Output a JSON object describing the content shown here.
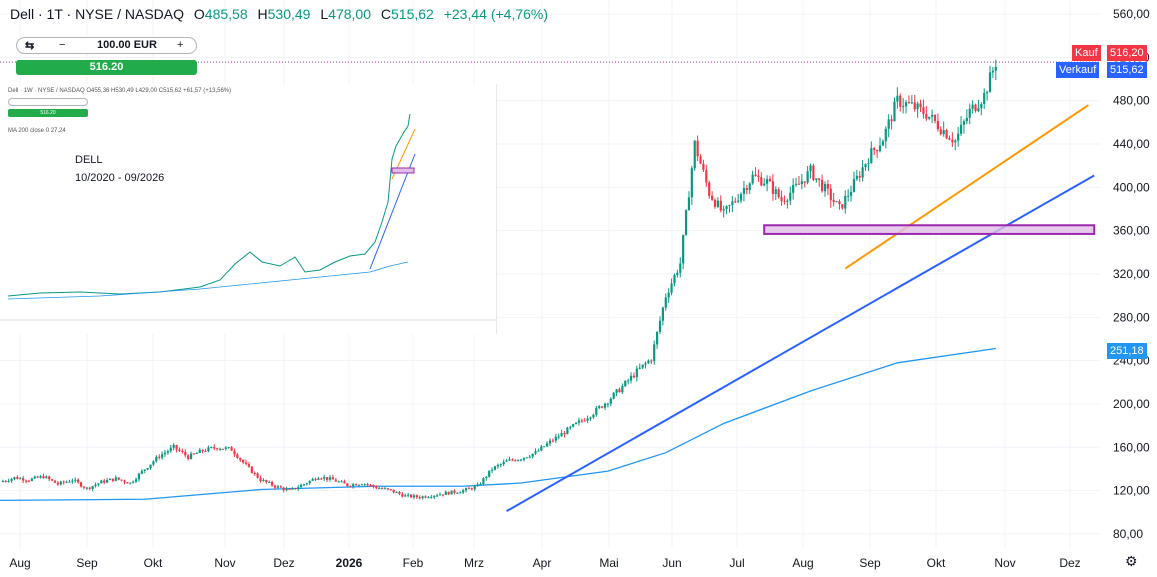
{
  "header": {
    "symbol": "Dell · 1T · NYSE / NASDAQ",
    "open_label": "O",
    "open": "485,58",
    "high_label": "H",
    "high": "530,49",
    "low_label": "L",
    "low": "478,00",
    "close_label": "C",
    "close": "515,62",
    "change": "+23,44 (+4,76%)"
  },
  "order_panel": {
    "quantity": "100.00 EUR",
    "minus": "−",
    "plus": "+",
    "switch_icon": "swap-icon",
    "buy_price": "516.20"
  },
  "price_tags": {
    "kauf_label": "Kauf",
    "kauf_value": "516,20",
    "verkauf_label": "Verkauf",
    "verkauf_value": "515,62",
    "ma_value": "251,18"
  },
  "colors": {
    "up": "#089981",
    "down": "#f23645",
    "ma": "#2196f3",
    "trend_blue": "#2962ff",
    "trend_orange": "#ff9800",
    "zone": "#9c27b0",
    "kauf": "#f23645",
    "verkauf": "#2962ff",
    "buy_button": "#22ab4a"
  },
  "inset": {
    "header": "Dell · 1W · NYSE / NASDAQ  O455,36 H530,49 L429,00 C515,62 +61,57 (+13,56%)",
    "button": "516.20",
    "ma_label": "MA 200 close 0  27,24",
    "note_title": "DELL",
    "note_range": "10/2020 - 09/2026"
  },
  "settings_icon": "gear-icon",
  "chart_data": {
    "type": "candlestick",
    "title": "",
    "x_ticks": [
      "Aug",
      "Sep",
      "Okt",
      "Nov",
      "Dez",
      "2026",
      "Feb",
      "Mrz",
      "Apr",
      "Mai",
      "Jun",
      "Jul",
      "Aug",
      "Sep",
      "Okt",
      "Nov",
      "Dez"
    ],
    "y_ticks": [
      80,
      120,
      160,
      200,
      240,
      280,
      320,
      360,
      400,
      440,
      480,
      520,
      560
    ],
    "y_tick_labels": [
      "80,00",
      "120,00",
      "160,00",
      "200,00",
      "240,00",
      "280,00",
      "320,00",
      "360,00",
      "400,00",
      "440,00",
      "480,00",
      "520,00",
      "560,00"
    ],
    "ylim": [
      67,
      573
    ],
    "close_path": [
      [
        0,
        128
      ],
      [
        5,
        132
      ],
      [
        10,
        130
      ],
      [
        15,
        133
      ],
      [
        20,
        126
      ],
      [
        25,
        130
      ],
      [
        30,
        122
      ],
      [
        35,
        128
      ],
      [
        40,
        131
      ],
      [
        45,
        127
      ],
      [
        50,
        140
      ],
      [
        55,
        152
      ],
      [
        60,
        160
      ],
      [
        65,
        151
      ],
      [
        70,
        157
      ],
      [
        75,
        160
      ],
      [
        80,
        158
      ],
      [
        85,
        143
      ],
      [
        90,
        130
      ],
      [
        95,
        124
      ],
      [
        100,
        120
      ],
      [
        105,
        126
      ],
      [
        110,
        133
      ],
      [
        115,
        130
      ],
      [
        120,
        125
      ],
      [
        125,
        127
      ],
      [
        130,
        123
      ],
      [
        135,
        120
      ],
      [
        140,
        115
      ],
      [
        145,
        114
      ],
      [
        150,
        116
      ],
      [
        155,
        118
      ],
      [
        160,
        120
      ],
      [
        165,
        124
      ],
      [
        170,
        140
      ],
      [
        175,
        147
      ],
      [
        180,
        150
      ],
      [
        185,
        155
      ],
      [
        190,
        165
      ],
      [
        195,
        174
      ],
      [
        200,
        183
      ],
      [
        205,
        192
      ],
      [
        210,
        203
      ],
      [
        215,
        216
      ],
      [
        220,
        230
      ],
      [
        225,
        242
      ],
      [
        230,
        300
      ],
      [
        235,
        330
      ],
      [
        240,
        440
      ],
      [
        245,
        395
      ],
      [
        250,
        375
      ],
      [
        255,
        392
      ],
      [
        260,
        410
      ],
      [
        265,
        405
      ],
      [
        270,
        388
      ],
      [
        275,
        400
      ],
      [
        280,
        415
      ],
      [
        285,
        398
      ],
      [
        290,
        380
      ],
      [
        295,
        403
      ],
      [
        300,
        428
      ],
      [
        305,
        445
      ],
      [
        310,
        480
      ],
      [
        315,
        475
      ],
      [
        320,
        468
      ],
      [
        325,
        455
      ],
      [
        330,
        443
      ],
      [
        335,
        470
      ],
      [
        340,
        485
      ],
      [
        344,
        515.62
      ]
    ],
    "sma_points": [
      [
        0,
        111
      ],
      [
        50,
        112
      ],
      [
        90,
        121
      ],
      [
        130,
        124
      ],
      [
        160,
        124
      ],
      [
        180,
        127
      ],
      [
        210,
        138
      ],
      [
        230,
        155
      ],
      [
        250,
        182
      ],
      [
        280,
        212
      ],
      [
        310,
        238
      ],
      [
        344,
        251.18
      ]
    ],
    "blue_trendline": [
      [
        175,
        101
      ],
      [
        378,
        411
      ]
    ],
    "orange_trendline": [
      [
        292,
        325
      ],
      [
        376,
        476
      ]
    ],
    "support_zone": {
      "x_start": 264,
      "x_end": 378,
      "price_low": 357,
      "price_high": 365
    },
    "current_price": 515.62
  }
}
